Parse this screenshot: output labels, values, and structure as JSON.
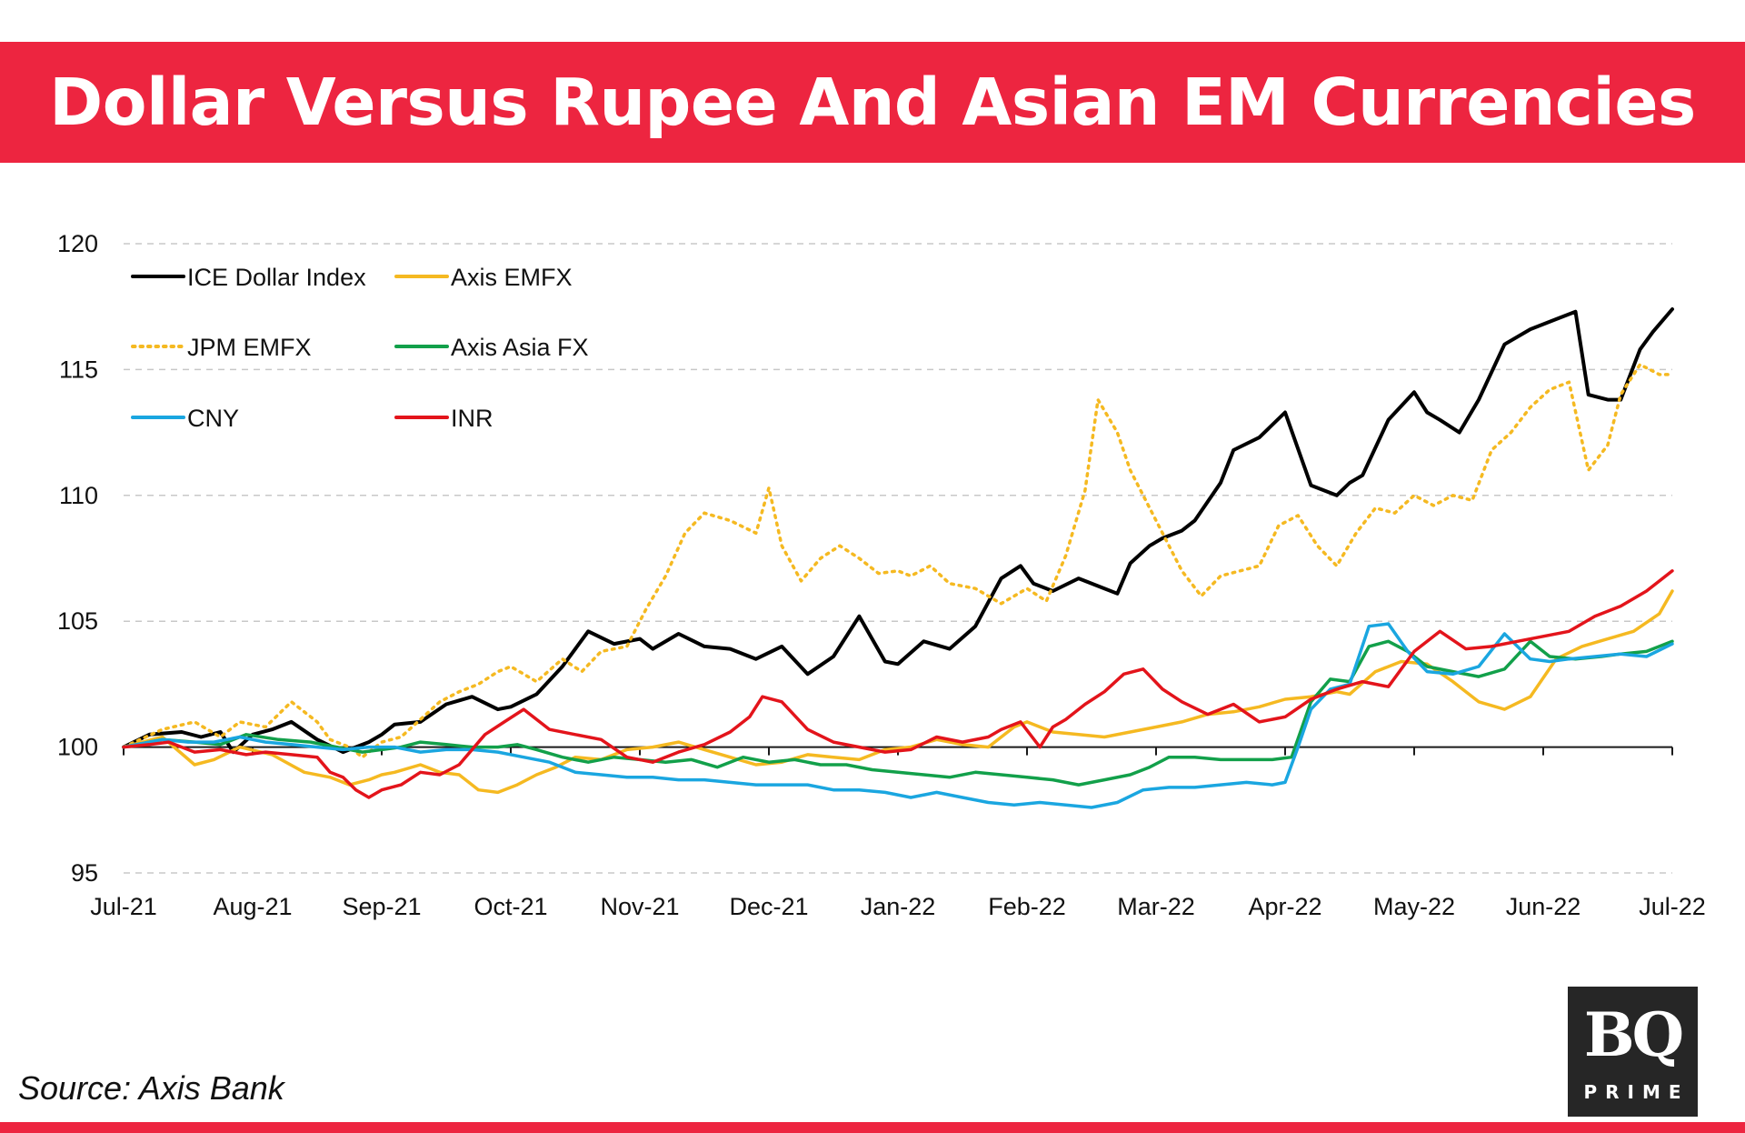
{
  "title": "Dollar Versus Rupee And Asian EM Currencies",
  "source": "Source: Axis Bank",
  "logo": {
    "text": "BQ",
    "subtext": "PRIME"
  },
  "colors": {
    "banner": "#ed2540",
    "black": "#000000",
    "gold": "#f5b921",
    "green": "#12a04a",
    "blue": "#1aa6e0",
    "red": "#e3141b"
  },
  "chart_data": {
    "type": "line",
    "title": "Dollar Versus Rupee And Asian EM Currencies",
    "xlabel": "",
    "ylabel": "",
    "ylim": [
      95,
      120
    ],
    "xlim": [
      0,
      12
    ],
    "yticks": [
      "95",
      "100",
      "105",
      "110",
      "115",
      "120"
    ],
    "xticks": [
      "Jul-21",
      "Aug-21",
      "Sep-21",
      "Oct-21",
      "Nov-21",
      "Dec-21",
      "Jan-22",
      "Feb-22",
      "Mar-22",
      "Apr-22",
      "May-22",
      "Jun-22",
      "Jul-22"
    ],
    "grid": true,
    "legend_position": "top-left",
    "series": [
      {
        "name": "ICE Dollar Index",
        "color": "#000000",
        "style": "solid",
        "x": [
          0,
          0.2,
          0.45,
          0.6,
          0.75,
          0.85,
          1.0,
          1.15,
          1.3,
          1.5,
          1.7,
          1.9,
          2.0,
          2.1,
          2.3,
          2.5,
          2.7,
          2.9,
          3.0,
          3.2,
          3.4,
          3.6,
          3.8,
          4.0,
          4.1,
          4.3,
          4.5,
          4.7,
          4.9,
          5.1,
          5.3,
          5.5,
          5.7,
          5.9,
          6.0,
          6.2,
          6.4,
          6.6,
          6.8,
          6.95,
          7.05,
          7.2,
          7.4,
          7.6,
          7.7,
          7.8,
          7.95,
          8.05,
          8.2,
          8.3,
          8.5,
          8.6,
          8.8,
          9.0,
          9.2,
          9.4,
          9.5,
          9.6,
          9.8,
          10.0,
          10.1,
          10.2,
          10.35,
          10.5,
          10.7,
          10.9,
          11.1,
          11.25,
          11.35,
          11.5,
          11.6,
          11.75,
          11.85,
          12.0
        ],
        "y": [
          100,
          100.5,
          100.6,
          100.4,
          100.6,
          99.8,
          100.5,
          100.7,
          101.0,
          100.3,
          99.8,
          100.2,
          100.5,
          100.9,
          101.0,
          101.7,
          102.0,
          101.5,
          101.6,
          102.1,
          103.2,
          104.6,
          104.1,
          104.3,
          103.9,
          104.5,
          104.0,
          103.9,
          103.5,
          104.0,
          102.9,
          103.6,
          105.2,
          103.4,
          103.3,
          104.2,
          103.9,
          104.8,
          106.7,
          107.2,
          106.5,
          106.2,
          106.7,
          106.3,
          106.1,
          107.3,
          108.0,
          108.3,
          108.6,
          109.0,
          110.5,
          111.8,
          112.3,
          113.3,
          110.4,
          110.0,
          110.5,
          110.8,
          113.0,
          114.1,
          113.3,
          113.0,
          112.5,
          113.8,
          116.0,
          116.6,
          117.0,
          117.3,
          114.0,
          113.8,
          113.8,
          115.8,
          116.5,
          117.4
        ]
      },
      {
        "name": "Axis EMFX",
        "color": "#f5b921",
        "style": "solid",
        "x": [
          0,
          0.3,
          0.55,
          0.7,
          0.9,
          1.15,
          1.4,
          1.6,
          1.75,
          1.9,
          2.0,
          2.1,
          2.3,
          2.45,
          2.6,
          2.75,
          2.9,
          3.05,
          3.2,
          3.35,
          3.5,
          3.7,
          3.9,
          4.1,
          4.3,
          4.5,
          4.7,
          4.9,
          5.1,
          5.3,
          5.5,
          5.7,
          5.9,
          6.1,
          6.3,
          6.5,
          6.7,
          6.9,
          7.0,
          7.2,
          7.4,
          7.6,
          7.8,
          8.0,
          8.2,
          8.4,
          8.6,
          8.8,
          9.0,
          9.2,
          9.4,
          9.5,
          9.7,
          9.9,
          10.1,
          10.3,
          10.5,
          10.7,
          10.9,
          11.1,
          11.3,
          11.5,
          11.7,
          11.9,
          12.0
        ],
        "y": [
          100,
          100.4,
          99.3,
          99.5,
          100.0,
          99.7,
          99.0,
          98.8,
          98.5,
          98.7,
          98.9,
          99.0,
          99.3,
          99.0,
          98.9,
          98.3,
          98.2,
          98.5,
          98.9,
          99.2,
          99.6,
          99.5,
          99.9,
          100.0,
          100.2,
          99.9,
          99.6,
          99.3,
          99.4,
          99.7,
          99.6,
          99.5,
          99.9,
          100.0,
          100.3,
          100.1,
          100.0,
          100.8,
          101.0,
          100.6,
          100.5,
          100.4,
          100.6,
          100.8,
          101.0,
          101.3,
          101.4,
          101.6,
          101.9,
          102.0,
          102.2,
          102.1,
          103.0,
          103.4,
          103.3,
          102.6,
          101.8,
          101.5,
          102.0,
          103.5,
          104.0,
          104.3,
          104.6,
          105.3,
          106.2
        ]
      },
      {
        "name": "JPM EMFX",
        "color": "#f5b921",
        "style": "dotted",
        "x": [
          0,
          0.3,
          0.55,
          0.75,
          0.9,
          1.1,
          1.3,
          1.5,
          1.6,
          1.75,
          1.85,
          2.0,
          2.15,
          2.3,
          2.45,
          2.6,
          2.75,
          2.9,
          3.0,
          3.2,
          3.4,
          3.55,
          3.7,
          3.9,
          4.05,
          4.2,
          4.35,
          4.5,
          4.7,
          4.9,
          5.0,
          5.1,
          5.25,
          5.4,
          5.55,
          5.7,
          5.85,
          6.0,
          6.1,
          6.25,
          6.4,
          6.6,
          6.8,
          7.0,
          7.15,
          7.25,
          7.3,
          7.45,
          7.55,
          7.7,
          7.8,
          7.95,
          8.05,
          8.2,
          8.35,
          8.5,
          8.65,
          8.8,
          8.95,
          9.1,
          9.25,
          9.4,
          9.55,
          9.7,
          9.85,
          10.0,
          10.15,
          10.3,
          10.45,
          10.6,
          10.75,
          10.9,
          11.05,
          11.2,
          11.35,
          11.5,
          11.6,
          11.75,
          11.9,
          12.0
        ],
        "y": [
          100,
          100.7,
          101.0,
          100.4,
          101.0,
          100.8,
          101.8,
          101.0,
          100.3,
          100.0,
          99.6,
          100.2,
          100.4,
          101.1,
          101.8,
          102.2,
          102.5,
          103.0,
          103.2,
          102.6,
          103.5,
          103.0,
          103.8,
          104.0,
          105.5,
          106.8,
          108.5,
          109.3,
          109.0,
          108.5,
          110.3,
          108.0,
          106.6,
          107.5,
          108.0,
          107.5,
          106.9,
          107.0,
          106.8,
          107.2,
          106.5,
          106.3,
          105.7,
          106.3,
          105.8,
          107.0,
          107.6,
          110.2,
          113.8,
          112.5,
          111.0,
          109.5,
          108.5,
          107.0,
          106.0,
          106.8,
          107.0,
          107.2,
          108.8,
          109.2,
          108.0,
          107.2,
          108.5,
          109.5,
          109.3,
          110.0,
          109.6,
          110.0,
          109.8,
          111.8,
          112.5,
          113.5,
          114.2,
          114.5,
          111.0,
          112.0,
          114.0,
          115.2,
          114.8,
          114.8
        ]
      },
      {
        "name": "Axis Asia FX",
        "color": "#12a04a",
        "style": "solid",
        "x": [
          0,
          0.3,
          0.55,
          0.75,
          0.95,
          1.2,
          1.45,
          1.65,
          1.85,
          2.0,
          2.15,
          2.3,
          2.5,
          2.7,
          2.9,
          3.05,
          3.2,
          3.4,
          3.6,
          3.8,
          4.0,
          4.2,
          4.4,
          4.6,
          4.8,
          5.0,
          5.2,
          5.4,
          5.6,
          5.8,
          6.0,
          6.2,
          6.4,
          6.6,
          6.8,
          7.0,
          7.2,
          7.4,
          7.6,
          7.8,
          7.95,
          8.1,
          8.3,
          8.5,
          8.7,
          8.9,
          9.05,
          9.2,
          9.35,
          9.5,
          9.65,
          9.8,
          9.95,
          10.1,
          10.3,
          10.5,
          10.7,
          10.9,
          11.05,
          11.25,
          11.45,
          11.6,
          11.8,
          12.0
        ],
        "y": [
          100,
          100.3,
          100.2,
          100.1,
          100.5,
          100.3,
          100.2,
          100.0,
          99.8,
          99.9,
          100.0,
          100.2,
          100.1,
          100.0,
          100.0,
          100.1,
          99.9,
          99.6,
          99.4,
          99.6,
          99.5,
          99.4,
          99.5,
          99.2,
          99.6,
          99.4,
          99.5,
          99.3,
          99.3,
          99.1,
          99.0,
          98.9,
          98.8,
          99.0,
          98.9,
          98.8,
          98.7,
          98.5,
          98.7,
          98.9,
          99.2,
          99.6,
          99.6,
          99.5,
          99.5,
          99.5,
          99.6,
          101.8,
          102.7,
          102.6,
          104.0,
          104.2,
          103.8,
          103.2,
          103.0,
          102.8,
          103.1,
          104.2,
          103.6,
          103.5,
          103.6,
          103.7,
          103.8,
          104.2
        ]
      },
      {
        "name": "CNY",
        "color": "#1aa6e0",
        "style": "solid",
        "x": [
          0,
          0.3,
          0.5,
          0.7,
          0.9,
          1.1,
          1.3,
          1.5,
          1.7,
          1.9,
          2.1,
          2.3,
          2.5,
          2.7,
          2.9,
          3.1,
          3.3,
          3.5,
          3.7,
          3.9,
          4.1,
          4.3,
          4.5,
          4.7,
          4.9,
          5.1,
          5.3,
          5.5,
          5.7,
          5.9,
          6.1,
          6.3,
          6.5,
          6.7,
          6.9,
          7.1,
          7.3,
          7.5,
          7.7,
          7.9,
          8.1,
          8.3,
          8.5,
          8.7,
          8.9,
          9.0,
          9.1,
          9.2,
          9.35,
          9.5,
          9.65,
          9.8,
          9.95,
          10.1,
          10.3,
          10.5,
          10.7,
          10.9,
          11.05,
          11.2,
          11.4,
          11.6,
          11.8,
          12.0
        ],
        "y": [
          100,
          100.3,
          100.2,
          100.2,
          100.4,
          100.2,
          100.1,
          100.0,
          99.9,
          100.0,
          100.0,
          99.8,
          99.9,
          99.9,
          99.8,
          99.6,
          99.4,
          99.0,
          98.9,
          98.8,
          98.8,
          98.7,
          98.7,
          98.6,
          98.5,
          98.5,
          98.5,
          98.3,
          98.3,
          98.2,
          98.0,
          98.2,
          98.0,
          97.8,
          97.7,
          97.8,
          97.7,
          97.6,
          97.8,
          98.3,
          98.4,
          98.4,
          98.5,
          98.6,
          98.5,
          98.6,
          100.0,
          101.5,
          102.3,
          102.5,
          104.8,
          104.9,
          103.8,
          103.0,
          102.9,
          103.2,
          104.5,
          103.5,
          103.4,
          103.5,
          103.6,
          103.7,
          103.6,
          104.1
        ]
      },
      {
        "name": "INR",
        "color": "#e3141b",
        "style": "solid",
        "x": [
          0,
          0.2,
          0.35,
          0.55,
          0.75,
          0.95,
          1.1,
          1.3,
          1.5,
          1.6,
          1.7,
          1.8,
          1.9,
          2.0,
          2.15,
          2.3,
          2.45,
          2.6,
          2.8,
          2.95,
          3.1,
          3.3,
          3.5,
          3.7,
          3.9,
          4.1,
          4.3,
          4.5,
          4.7,
          4.85,
          4.95,
          5.1,
          5.3,
          5.5,
          5.7,
          5.9,
          6.1,
          6.3,
          6.5,
          6.7,
          6.8,
          6.95,
          7.1,
          7.2,
          7.3,
          7.45,
          7.6,
          7.75,
          7.9,
          8.05,
          8.2,
          8.4,
          8.6,
          8.8,
          9.0,
          9.2,
          9.4,
          9.6,
          9.8,
          10.0,
          10.2,
          10.4,
          10.6,
          10.8,
          11.0,
          11.2,
          11.4,
          11.6,
          11.8,
          12.0
        ],
        "y": [
          100,
          100.1,
          100.2,
          99.8,
          99.9,
          99.7,
          99.8,
          99.7,
          99.6,
          99.0,
          98.8,
          98.3,
          98.0,
          98.3,
          98.5,
          99.0,
          98.9,
          99.3,
          100.5,
          101.0,
          101.5,
          100.7,
          100.5,
          100.3,
          99.6,
          99.4,
          99.8,
          100.1,
          100.6,
          101.2,
          102.0,
          101.8,
          100.7,
          100.2,
          100.0,
          99.8,
          99.9,
          100.4,
          100.2,
          100.4,
          100.7,
          101.0,
          100.0,
          100.8,
          101.1,
          101.7,
          102.2,
          102.9,
          103.1,
          102.3,
          101.8,
          101.3,
          101.7,
          101.0,
          101.2,
          101.9,
          102.3,
          102.6,
          102.4,
          103.8,
          104.6,
          103.9,
          104.0,
          104.2,
          104.4,
          104.6,
          105.2,
          105.6,
          106.2,
          107.0
        ]
      }
    ]
  }
}
